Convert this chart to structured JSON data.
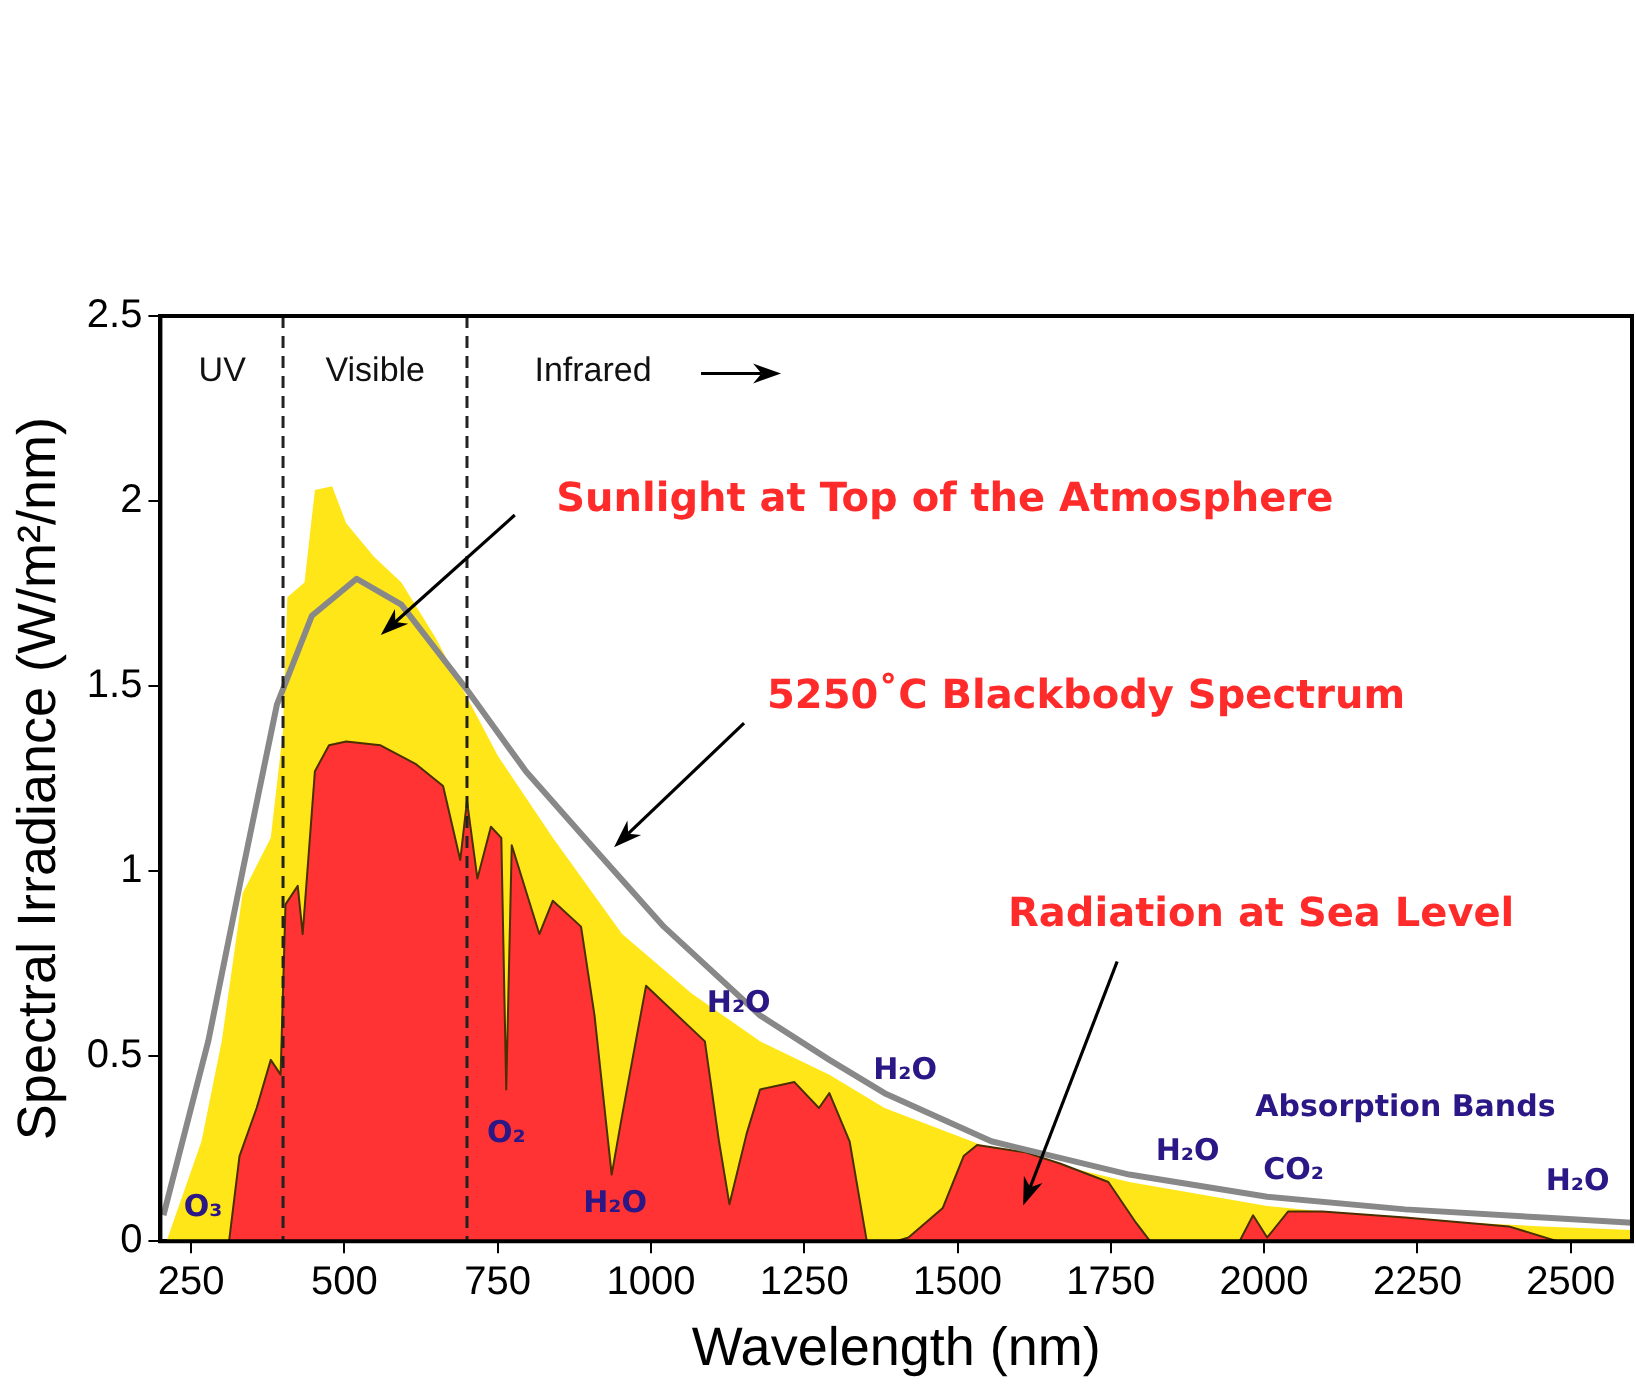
{
  "chart_data": {
    "type": "area",
    "xlabel": "Wavelength (nm)",
    "ylabel": "Spectral Irradiance (W/m²/nm)",
    "xlim": [
      200,
      2600
    ],
    "xticks": [
      250,
      500,
      750,
      1000,
      1250,
      1500,
      1750,
      2000,
      2250,
      2500
    ],
    "ylim": [
      0,
      2.5
    ],
    "yticks": [
      0,
      0.5,
      1,
      1.5,
      2,
      2.5
    ],
    "grid": false,
    "legend": false,
    "marker": "none",
    "series": [
      {
        "color": "#ffe619",
        "x": [
          210,
          267,
          300,
          334,
          380,
          400,
          407,
          435,
          452,
          480,
          503,
          548,
          593,
          649,
          700,
          751,
          840,
          953,
          1066,
          1178,
          1291,
          1381,
          1555,
          1780,
          2005,
          2230,
          2455,
          2600
        ],
        "values": [
          0,
          0.27,
          0.54,
          0.94,
          1.09,
          1.38,
          1.74,
          1.78,
          2.03,
          2.04,
          1.94,
          1.85,
          1.78,
          1.63,
          1.47,
          1.31,
          1.09,
          0.83,
          0.67,
          0.54,
          0.45,
          0.36,
          0.25,
          0.16,
          0.095,
          0.058,
          0.04,
          0.03
        ]
      },
      {
        "color": "#ff3333",
        "x": [
          312,
          329,
          357,
          380,
          396,
          404,
          424,
          432,
          452,
          475,
          503,
          559,
          616,
          661,
          689,
          700,
          717,
          739,
          756,
          764,
          773,
          818,
          840,
          886,
          908,
          936,
          953,
          992,
          1088,
          1111,
          1128,
          1156,
          1178,
          1234,
          1274,
          1291,
          1324,
          1352,
          1400,
          1420,
          1476,
          1510,
          1532,
          1611,
          1667,
          1746,
          1791,
          1814,
          1960,
          1982,
          2005,
          2039,
          2095,
          2230,
          2399,
          2478,
          2600
        ],
        "values": [
          0,
          0.23,
          0.36,
          0.49,
          0.45,
          0.91,
          0.96,
          0.83,
          1.27,
          1.34,
          1.35,
          1.34,
          1.29,
          1.23,
          1.03,
          1.19,
          0.98,
          1.12,
          1.09,
          0.41,
          1.07,
          0.83,
          0.92,
          0.85,
          0.61,
          0.18,
          0.34,
          0.69,
          0.54,
          0.27,
          0.1,
          0.29,
          0.41,
          0.43,
          0.36,
          0.4,
          0.27,
          0,
          0,
          0.01,
          0.09,
          0.23,
          0.26,
          0.24,
          0.21,
          0.16,
          0.05,
          0,
          0,
          0.07,
          0.01,
          0.08,
          0.08,
          0.064,
          0.04,
          0,
          0
        ]
      },
      {
        "type": "line",
        "color": "#888888",
        "x": [
          205,
          278,
          334,
          390,
          447,
          520,
          593,
          700,
          796,
          908,
          1021,
          1178,
          1291,
          1381,
          1555,
          1780,
          2005,
          2230,
          2455,
          2600
        ],
        "values": [
          0.07,
          0.54,
          1.0,
          1.45,
          1.69,
          1.79,
          1.72,
          1.49,
          1.27,
          1.06,
          0.85,
          0.61,
          0.49,
          0.4,
          0.27,
          0.18,
          0.12,
          0.086,
          0.064,
          0.05
        ]
      }
    ],
    "ref_lines": [
      {
        "axis": "x",
        "value": 400,
        "color": "#222222",
        "line_style": "dashed"
      },
      {
        "axis": "x",
        "value": 700,
        "color": "#222222",
        "line_style": "dashed"
      }
    ],
    "annotations": [
      "UV",
      "Visible",
      "Infrared",
      "Sunlight at Top of the Atmosphere",
      "5250˚C Blackbody Spectrum",
      "Radiation at Sea Level",
      "O₃",
      "O₂",
      "H₂O",
      "H₂O",
      "H₂O",
      "H₂O",
      "Absorption Bands",
      "CO₂",
      "H₂O"
    ]
  }
}
